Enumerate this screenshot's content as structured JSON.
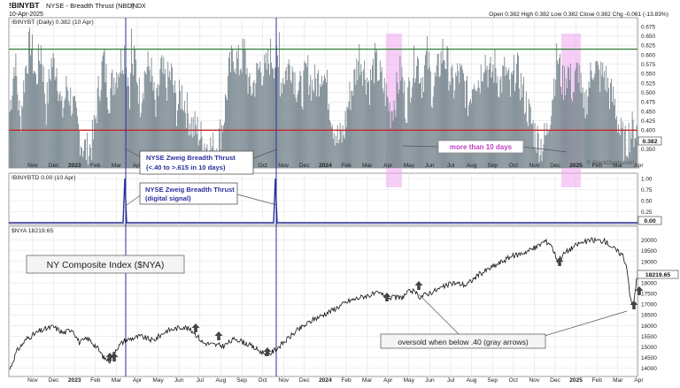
{
  "header": {
    "symbol": "!BINYBT",
    "name": "NYSE - Breadth Thrust (NBD)",
    "exchange": "INDX",
    "date": "10-Apr-2025",
    "ohlc": "Open 0.382  High 0.382  Low 0.382  Close 0.382  Chg -0.061 (-13.83%)",
    "watermark": "© StockCharts.com"
  },
  "colors": {
    "bars": "#7c8a92",
    "upper_line": "#2e7d32",
    "lower_line": "#c62828",
    "signal_line": "#2a2f9c",
    "highlight": "#f0a6f0",
    "price": "#111111",
    "arrow": "#444444"
  },
  "chart_data": [
    {
      "type": "bar",
      "panel": "breadth-thrust",
      "legend": "!BINYBT (Daily) 0.382 (10 Apr)",
      "ylim": [
        0.3,
        0.675
      ],
      "yticks": [
        "0.675",
        "0.650",
        "0.625",
        "0.600",
        "0.575",
        "0.550",
        "0.525",
        "0.500",
        "0.475",
        "0.450",
        "0.425",
        "0.400",
        "0.375",
        "0.350"
      ],
      "reference_lines": [
        0.615,
        0.4
      ],
      "last_value": "0.382",
      "xticks": [
        "Nov",
        "Dec",
        "2023",
        "Feb",
        "Mar",
        "Apr",
        "May",
        "Jun",
        "Jul",
        "Aug",
        "Sep",
        "Oct",
        "Nov",
        "Dec",
        "2024",
        "Feb",
        "Mar",
        "Apr",
        "May",
        "Jun",
        "Jul",
        "Aug",
        "Sep",
        "Oct",
        "Nov",
        "Dec",
        "2025",
        "Feb",
        "Mar",
        "Apr"
      ],
      "anchors": [
        [
          0,
          0.45
        ],
        [
          6,
          0.59
        ],
        [
          12,
          0.42
        ],
        [
          18,
          0.56
        ],
        [
          24,
          0.64
        ],
        [
          30,
          0.53
        ],
        [
          36,
          0.62
        ],
        [
          42,
          0.46
        ],
        [
          48,
          0.58
        ],
        [
          54,
          0.57
        ],
        [
          60,
          0.44
        ],
        [
          66,
          0.52
        ],
        [
          72,
          0.47
        ],
        [
          78,
          0.41
        ],
        [
          84,
          0.36
        ],
        [
          90,
          0.34
        ],
        [
          96,
          0.38
        ],
        [
          102,
          0.5
        ],
        [
          108,
          0.59
        ],
        [
          114,
          0.49
        ],
        [
          120,
          0.54
        ],
        [
          126,
          0.57
        ],
        [
          132,
          0.61
        ],
        [
          138,
          0.51
        ],
        [
          144,
          0.59
        ],
        [
          150,
          0.48
        ],
        [
          156,
          0.56
        ],
        [
          162,
          0.57
        ],
        [
          168,
          0.44
        ],
        [
          174,
          0.56
        ],
        [
          180,
          0.52
        ],
        [
          186,
          0.55
        ],
        [
          192,
          0.46
        ],
        [
          198,
          0.5
        ],
        [
          204,
          0.45
        ],
        [
          210,
          0.41
        ],
        [
          216,
          0.4
        ],
        [
          222,
          0.37
        ],
        [
          228,
          0.36
        ],
        [
          234,
          0.35
        ],
        [
          240,
          0.37
        ],
        [
          246,
          0.43
        ],
        [
          252,
          0.55
        ],
        [
          258,
          0.6
        ],
        [
          264,
          0.57
        ],
        [
          270,
          0.61
        ],
        [
          276,
          0.5
        ],
        [
          282,
          0.53
        ],
        [
          288,
          0.57
        ],
        [
          294,
          0.55
        ],
        [
          300,
          0.6
        ],
        [
          306,
          0.58
        ],
        [
          312,
          0.53
        ],
        [
          318,
          0.56
        ],
        [
          324,
          0.58
        ],
        [
          330,
          0.52
        ],
        [
          336,
          0.5
        ],
        [
          342,
          0.56
        ],
        [
          348,
          0.52
        ],
        [
          354,
          0.53
        ],
        [
          360,
          0.57
        ],
        [
          366,
          0.5
        ],
        [
          372,
          0.42
        ],
        [
          378,
          0.37
        ],
        [
          384,
          0.39
        ],
        [
          390,
          0.48
        ],
        [
          396,
          0.53
        ],
        [
          402,
          0.6
        ],
        [
          408,
          0.56
        ],
        [
          414,
          0.52
        ],
        [
          420,
          0.58
        ],
        [
          426,
          0.54
        ],
        [
          432,
          0.5
        ],
        [
          438,
          0.45
        ],
        [
          444,
          0.49
        ],
        [
          450,
          0.56
        ],
        [
          456,
          0.46
        ],
        [
          462,
          0.54
        ],
        [
          468,
          0.6
        ],
        [
          474,
          0.53
        ],
        [
          480,
          0.6
        ],
        [
          486,
          0.5
        ],
        [
          492,
          0.55
        ],
        [
          498,
          0.61
        ],
        [
          504,
          0.57
        ],
        [
          510,
          0.51
        ],
        [
          516,
          0.55
        ],
        [
          522,
          0.53
        ],
        [
          528,
          0.47
        ],
        [
          534,
          0.55
        ],
        [
          540,
          0.53
        ],
        [
          546,
          0.6
        ],
        [
          552,
          0.54
        ],
        [
          558,
          0.57
        ],
        [
          564,
          0.52
        ],
        [
          570,
          0.56
        ],
        [
          576,
          0.5
        ],
        [
          582,
          0.57
        ],
        [
          588,
          0.52
        ],
        [
          594,
          0.47
        ],
        [
          600,
          0.42
        ],
        [
          606,
          0.38
        ],
        [
          612,
          0.36
        ],
        [
          618,
          0.39
        ],
        [
          624,
          0.49
        ],
        [
          630,
          0.6
        ],
        [
          636,
          0.52
        ],
        [
          642,
          0.56
        ],
        [
          648,
          0.5
        ],
        [
          654,
          0.57
        ],
        [
          660,
          0.44
        ],
        [
          666,
          0.52
        ],
        [
          672,
          0.58
        ],
        [
          678,
          0.54
        ],
        [
          684,
          0.55
        ],
        [
          690,
          0.5
        ],
        [
          696,
          0.47
        ],
        [
          702,
          0.39
        ],
        [
          708,
          0.36
        ],
        [
          714,
          0.4
        ]
      ],
      "annotations": [
        {
          "text": [
            "NYSE Zweig Breadth Thrust",
            "(<.40 to >.615 in 10 days)"
          ],
          "points_to": [
            "Apr 2023",
            "Nov 2023"
          ]
        },
        {
          "text": [
            "more than 10 days"
          ],
          "points_to": [
            "May 2024",
            "Jan 2025"
          ]
        }
      ]
    },
    {
      "type": "line",
      "panel": "digital-signal",
      "legend": "!BINYBTD 0.00 (10 Apr)",
      "ylim": [
        0,
        1
      ],
      "yticks": [
        "1.00",
        "0.75",
        "0.50",
        "0.25",
        "0.00"
      ],
      "last_value": "0.00",
      "signals": [
        "Apr 2023",
        "Nov 2023"
      ],
      "annotations": [
        {
          "text": [
            "NYSE Zweig Breadth Thrust",
            "(digital signal)"
          ],
          "points_to": [
            "Apr 2023",
            "Nov 2023"
          ]
        }
      ]
    },
    {
      "type": "line",
      "panel": "nya",
      "legend": "$NYA 18219.65",
      "title": "NY Composite Index ($NYA)",
      "ylim": [
        13700,
        20400
      ],
      "yticks": [
        "20000",
        "19500",
        "19000",
        "18500",
        "18000",
        "17500",
        "17000",
        "16500",
        "16000",
        "15500",
        "15000",
        "14500",
        "14000"
      ],
      "last_value": "18219.65",
      "anchors": [
        [
          0,
          13950
        ],
        [
          8,
          14800
        ],
        [
          20,
          15400
        ],
        [
          35,
          15750
        ],
        [
          50,
          15950
        ],
        [
          62,
          15650
        ],
        [
          72,
          15850
        ],
        [
          80,
          15200
        ],
        [
          90,
          15400
        ],
        [
          100,
          15000
        ],
        [
          108,
          14500
        ],
        [
          115,
          14350
        ],
        [
          122,
          14900
        ],
        [
          132,
          15300
        ],
        [
          150,
          15500
        ],
        [
          165,
          15300
        ],
        [
          180,
          15750
        ],
        [
          200,
          15950
        ],
        [
          212,
          15700
        ],
        [
          222,
          15200
        ],
        [
          235,
          15100
        ],
        [
          246,
          15050
        ],
        [
          260,
          15400
        ],
        [
          275,
          15100
        ],
        [
          290,
          14750
        ],
        [
          300,
          14700
        ],
        [
          312,
          15100
        ],
        [
          330,
          15750
        ],
        [
          350,
          16300
        ],
        [
          370,
          16700
        ],
        [
          390,
          17150
        ],
        [
          410,
          17400
        ],
        [
          425,
          17500
        ],
        [
          437,
          17300
        ],
        [
          450,
          17300
        ],
        [
          462,
          17650
        ],
        [
          472,
          17350
        ],
        [
          490,
          17650
        ],
        [
          510,
          18000
        ],
        [
          525,
          17900
        ],
        [
          540,
          18400
        ],
        [
          560,
          18850
        ],
        [
          575,
          19200
        ],
        [
          590,
          19400
        ],
        [
          605,
          19650
        ],
        [
          615,
          19950
        ],
        [
          622,
          19850
        ],
        [
          630,
          19050
        ],
        [
          640,
          19450
        ],
        [
          655,
          19850
        ],
        [
          670,
          20000
        ],
        [
          685,
          19950
        ],
        [
          698,
          19500
        ],
        [
          705,
          19300
        ],
        [
          710,
          18700
        ],
        [
          714,
          17200
        ],
        [
          717,
          16900
        ],
        [
          719,
          17500
        ],
        [
          721,
          18219.65
        ]
      ],
      "annotations": [
        {
          "text": [
            "oversold when below .40 (gray arrows)"
          ]
        }
      ]
    }
  ]
}
